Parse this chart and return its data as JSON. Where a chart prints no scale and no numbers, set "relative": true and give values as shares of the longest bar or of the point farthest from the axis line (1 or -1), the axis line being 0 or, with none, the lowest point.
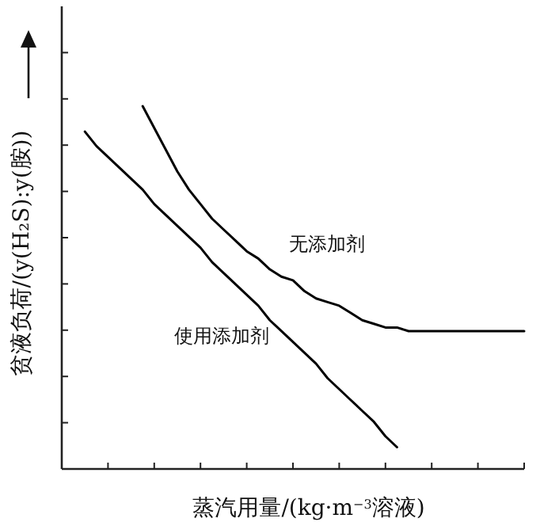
{
  "chart_data": {
    "type": "line",
    "relative": true,
    "xlabel": "蒸汽用量/(kg·m$^{−3}$溶液)",
    "ylabel": "贫液负荷/(y(H₂S):y(胺))",
    "categories": [
      null,
      null,
      null,
      null,
      null,
      null,
      null,
      null,
      null,
      null,
      null,
      null,
      null,
      null,
      null,
      null,
      null,
      null,
      null,
      null,
      null,
      null,
      null,
      null,
      null,
      null,
      null,
      null,
      null,
      null,
      null,
      null,
      null,
      null,
      null,
      null,
      null,
      null,
      null,
      null,
      null
    ],
    "series": [
      {
        "name": "使用添加剂",
        "color": "#000000",
        "values": [
          null,
          null,
          0.93,
          0.89,
          0.86,
          0.83,
          0.8,
          0.77,
          0.73,
          0.7,
          0.67,
          0.64,
          0.61,
          0.57,
          0.54,
          0.51,
          0.48,
          0.45,
          0.41,
          0.38,
          0.35,
          0.32,
          0.29,
          0.25,
          0.22,
          0.19,
          0.16,
          0.13,
          0.09,
          0.06,
          null,
          null,
          null,
          null,
          null,
          null,
          null,
          null,
          null,
          null,
          null
        ]
      },
      {
        "name": "无添加剂",
        "color": "#000000",
        "values": [
          null,
          null,
          null,
          null,
          null,
          null,
          null,
          1.0,
          0.94,
          0.88,
          0.82,
          0.77,
          0.73,
          0.69,
          0.66,
          0.63,
          0.6,
          0.58,
          0.55,
          0.53,
          0.52,
          0.49,
          0.47,
          0.46,
          0.45,
          0.43,
          0.41,
          0.4,
          0.39,
          0.39,
          0.38,
          0.38,
          0.38,
          0.38,
          0.38,
          0.38,
          0.38,
          0.38,
          0.38,
          0.38,
          0.38
        ]
      }
    ],
    "marker": "none",
    "line_style": "solid"
  }
}
